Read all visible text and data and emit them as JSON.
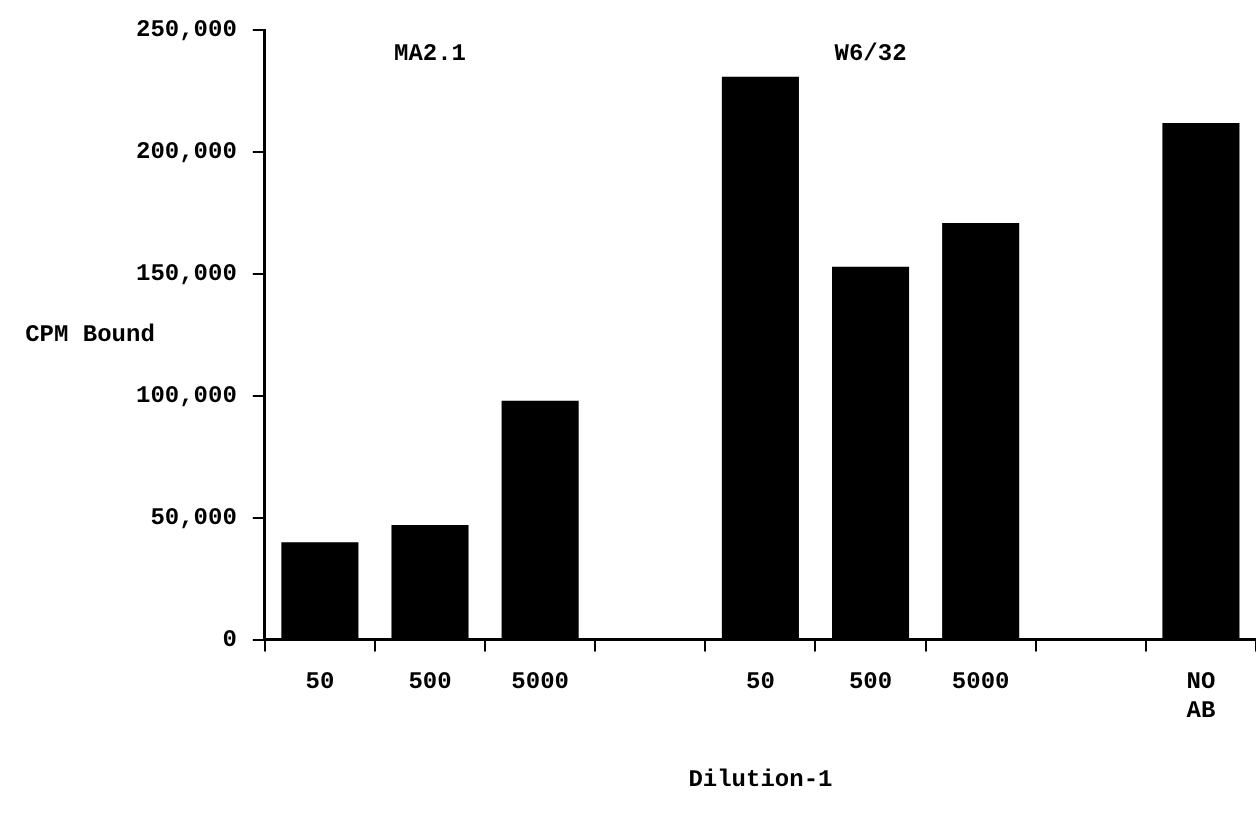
{
  "chart_data": {
    "type": "bar",
    "xlabel": "Dilution-1",
    "ylabel": "CPM Bound",
    "categories": [
      "50",
      "500",
      "5000",
      null,
      "50",
      "500",
      "5000",
      null,
      "NO AB"
    ],
    "values": [
      40000,
      47000,
      98000,
      null,
      231000,
      153000,
      171000,
      null,
      212000
    ],
    "color": "#000000",
    "ylim": [
      0,
      250000
    ],
    "yticks": [
      0,
      {
        "value": 50000,
        "label": "50,000"
      },
      {
        "value": 100000,
        "label": "100,000"
      },
      {
        "value": 150000,
        "label": "150,000"
      },
      {
        "value": 200000,
        "label": "200,000"
      },
      {
        "value": 250000,
        "label": "250,000"
      }
    ],
    "annotations": [
      "MA2.1",
      "W6/32"
    ],
    "grid": false,
    "legend": false
  }
}
